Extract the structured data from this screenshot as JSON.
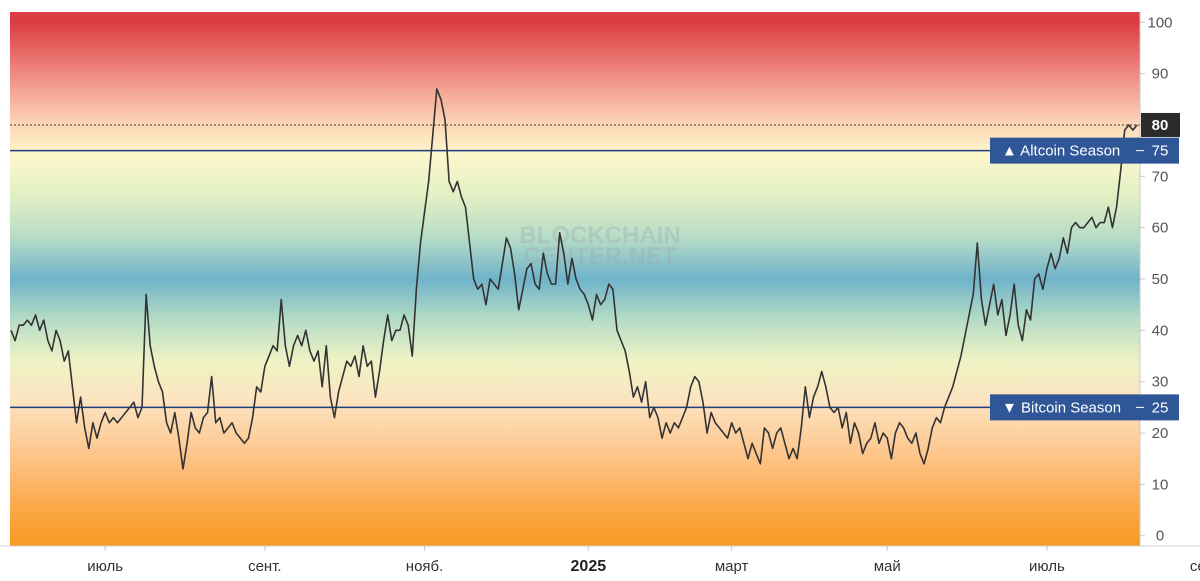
{
  "chart_data": {
    "type": "line",
    "watermark": [
      "BLOCKCHAIN",
      "CENTER.NET"
    ],
    "y_axis": {
      "ylim": [
        -2,
        102
      ],
      "ticks": [
        0,
        10,
        20,
        30,
        40,
        50,
        60,
        70,
        80,
        90,
        100
      ],
      "tick_labels": [
        "0",
        "10",
        "20",
        "30",
        "40",
        "50",
        "60",
        "70",
        "80",
        "90",
        "100"
      ],
      "position": "right"
    },
    "x_axis": {
      "tick_labels": [
        {
          "label": "июль",
          "index": 23,
          "bold": false
        },
        {
          "label": "сент.",
          "index": 62,
          "bold": false
        },
        {
          "label": "нояб.",
          "index": 101,
          "bold": false
        },
        {
          "label": "2025",
          "index": 141,
          "bold": true
        },
        {
          "label": "март",
          "index": 176,
          "bold": false
        },
        {
          "label": "май",
          "index": 214,
          "bold": false
        },
        {
          "label": "июль",
          "index": 253,
          "bold": false
        },
        {
          "label": "сент.",
          "index": 292,
          "bold": false
        }
      ]
    },
    "background_gradient": [
      {
        "value": 100,
        "color": "#dc3c44"
      },
      {
        "value": 88,
        "color": "#f29a8c"
      },
      {
        "value": 80,
        "color": "#fdd8b8"
      },
      {
        "value": 74,
        "color": "#fdf7cc"
      },
      {
        "value": 66,
        "color": "#e1f0c4"
      },
      {
        "value": 58,
        "color": "#b6dcc6"
      },
      {
        "value": 50,
        "color": "#6fb3ca"
      },
      {
        "value": 42,
        "color": "#b6dcc6"
      },
      {
        "value": 34,
        "color": "#eef3c4"
      },
      {
        "value": 26,
        "color": "#fde3c0"
      },
      {
        "value": 16,
        "color": "#fdc68c"
      },
      {
        "value": 6,
        "color": "#fba94c"
      },
      {
        "value": -2,
        "color": "#f99a20"
      }
    ],
    "reference_lines": [
      {
        "value": 75,
        "label": "▲ Altcoin Season",
        "value_label": "75",
        "color": "#1f3f7d",
        "label_bg": "#2f5697"
      },
      {
        "value": 25,
        "label": "▼ Bitcoin Season",
        "value_label": "25",
        "color": "#1f3f7d",
        "label_bg": "#2f5697"
      }
    ],
    "current_value": {
      "value": 80,
      "label": "80",
      "bg": "#2b2b2b"
    },
    "series": [
      {
        "color": "#333333",
        "values": [
          40,
          38,
          41,
          41,
          42,
          41,
          43,
          40,
          42,
          38,
          36,
          40,
          38,
          34,
          36,
          29,
          22,
          27,
          21,
          17,
          22,
          19,
          22,
          24,
          22,
          23,
          22,
          23,
          24,
          25,
          26,
          23,
          25,
          47,
          37,
          33,
          30,
          28,
          22,
          20,
          24,
          19,
          13,
          18,
          24,
          21,
          20,
          23,
          24,
          31,
          22,
          23,
          20,
          21,
          22,
          20,
          19,
          18,
          19,
          23,
          29,
          28,
          33,
          35,
          37,
          36,
          46,
          37,
          33,
          37,
          39,
          37,
          40,
          36,
          34,
          36,
          29,
          37,
          27,
          23,
          28,
          31,
          34,
          33,
          35,
          31,
          37,
          33,
          34,
          27,
          32,
          38,
          43,
          38,
          40,
          40,
          43,
          41,
          35,
          48,
          57,
          63,
          69,
          78,
          87,
          85,
          81,
          69,
          67,
          69,
          66,
          64,
          57,
          50,
          48,
          49,
          45,
          50,
          49,
          48,
          53,
          58,
          56,
          51,
          44,
          48,
          52,
          53,
          49,
          48,
          55,
          51,
          49,
          49,
          59,
          55,
          49,
          54,
          50,
          48,
          47,
          45,
          42,
          47,
          45,
          46,
          49,
          48,
          40,
          38,
          36,
          32,
          27,
          29,
          26,
          30,
          23,
          25,
          23,
          19,
          22,
          20,
          22,
          21,
          23,
          25,
          29,
          31,
          30,
          26,
          20,
          24,
          22,
          21,
          20,
          19,
          22,
          20,
          21,
          18,
          15,
          18,
          16,
          14,
          21,
          20,
          17,
          20,
          21,
          18,
          15,
          17,
          15,
          21,
          29,
          23,
          27,
          29,
          32,
          29,
          25,
          24,
          25,
          21,
          24,
          18,
          22,
          20,
          16,
          18,
          19,
          22,
          18,
          20,
          19,
          15,
          20,
          22,
          21,
          19,
          18,
          20,
          16,
          14,
          17,
          21,
          23,
          22,
          25,
          27,
          29,
          32,
          35,
          39,
          43,
          47,
          57,
          46,
          41,
          45,
          49,
          43,
          46,
          39,
          43,
          49,
          41,
          38,
          44,
          42,
          50,
          51,
          48,
          52,
          55,
          52,
          54,
          58,
          55,
          60,
          61,
          60,
          60,
          61,
          62,
          60,
          61,
          61,
          64,
          60,
          64,
          71,
          79,
          80,
          79,
          80
        ]
      }
    ]
  }
}
